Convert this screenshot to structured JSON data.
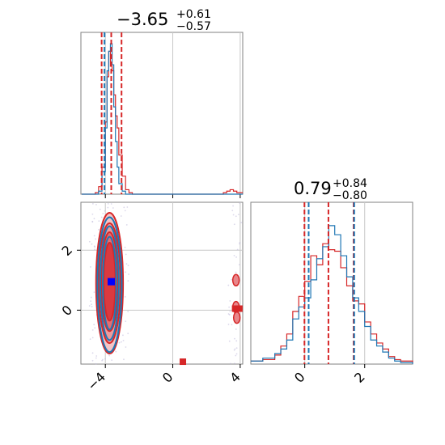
{
  "chart_data": {
    "type": "corner",
    "colors": {
      "red": "#d62728",
      "blue": "#1f77b4",
      "red_fill": "#e8868a",
      "marker": "#0000ff"
    },
    "parameters": [
      {
        "title_value": "−3.65",
        "title_plus": "+0.61",
        "title_minus": "−0.57",
        "range": [
          -5.45,
          4.15
        ],
        "ticks": [
          -4,
          0,
          4
        ],
        "tick_labels": [
          "−4",
          "0",
          "4"
        ],
        "quantiles_red": [
          -4.22,
          -3.65,
          -3.04
        ],
        "quantiles_blue": [
          -4.05
        ]
      },
      {
        "title_value": "0.79",
        "title_plus": "+0.84",
        "title_minus": "−0.80",
        "range": [
          -1.8,
          3.6
        ],
        "ticks": [
          0,
          2
        ],
        "tick_labels": [
          "0",
          "2"
        ],
        "quantiles_red": [
          -0.01,
          0.79,
          1.63
        ],
        "quantiles_blue": [
          0.13,
          1.65
        ]
      }
    ],
    "hist_param1": {
      "x": [
        -5.4,
        -5.0,
        -4.6,
        -4.4,
        -4.2,
        -4.0,
        -3.9,
        -3.8,
        -3.7,
        -3.6,
        -3.5,
        -3.4,
        -3.3,
        -3.2,
        -3.0,
        -2.8,
        -2.6,
        -2.4,
        -2.0,
        -0.4,
        0.8,
        1.8,
        2.6,
        3.0,
        3.2,
        3.4,
        3.6,
        3.8,
        4.0
      ],
      "red": [
        0,
        0,
        0.01,
        0.05,
        0.18,
        0.48,
        0.78,
        0.95,
        0.85,
        0.82,
        0.66,
        0.52,
        0.44,
        0.26,
        0.12,
        0.03,
        0.01,
        0,
        0,
        0,
        0,
        0,
        0,
        0.01,
        0.02,
        0.03,
        0.02,
        0.01,
        0.01
      ],
      "blue": [
        0,
        0,
        0,
        0.02,
        0.15,
        0.44,
        0.82,
        0.95,
        1.0,
        0.86,
        0.58,
        0.35,
        0.18,
        0.07,
        0.02,
        0,
        0,
        0,
        0,
        0,
        0,
        0,
        0,
        0,
        0,
        0,
        0,
        0,
        0
      ]
    },
    "hist_param2": {
      "x": [
        -1.8,
        -1.4,
        -1.0,
        -0.8,
        -0.6,
        -0.4,
        -0.2,
        0.0,
        0.2,
        0.4,
        0.6,
        0.8,
        1.0,
        1.2,
        1.4,
        1.6,
        1.8,
        2.0,
        2.2,
        2.4,
        2.6,
        2.8,
        3.0,
        3.2,
        3.6
      ],
      "red": [
        0.02,
        0.03,
        0.06,
        0.12,
        0.2,
        0.35,
        0.45,
        0.55,
        0.72,
        0.66,
        0.8,
        0.76,
        0.75,
        0.64,
        0.52,
        0.42,
        0.4,
        0.28,
        0.2,
        0.14,
        0.1,
        0.05,
        0.03,
        0.02,
        0.01
      ],
      "blue": [
        0.02,
        0.04,
        0.07,
        0.1,
        0.16,
        0.3,
        0.38,
        0.44,
        0.56,
        0.7,
        0.78,
        0.92,
        0.86,
        0.72,
        0.58,
        0.44,
        0.35,
        0.25,
        0.16,
        0.12,
        0.08,
        0.04,
        0.02,
        0.01,
        0
      ]
    },
    "joint": {
      "contours_red": [
        {
          "cx": -3.75,
          "cy": 0.9,
          "rx": 0.8,
          "ry": 2.35
        },
        {
          "cx": -3.75,
          "cy": 0.9,
          "rx": 0.65,
          "ry": 2.0
        },
        {
          "cx": -3.75,
          "cy": 0.95,
          "rx": 0.5,
          "ry": 1.65
        },
        {
          "cx": -3.75,
          "cy": 0.95,
          "rx": 0.35,
          "ry": 1.3
        }
      ],
      "contours_blue": [
        {
          "cx": -3.75,
          "cy": 0.85,
          "rx": 0.72,
          "ry": 2.25
        },
        {
          "cx": -3.75,
          "cy": 0.9,
          "rx": 0.55,
          "ry": 1.9
        },
        {
          "cx": -3.75,
          "cy": 0.9,
          "rx": 0.4,
          "ry": 1.55
        }
      ],
      "outlier_blobs": [
        {
          "x": 3.75,
          "y": 1.0
        },
        {
          "x": 3.75,
          "y": 0.1
        },
        {
          "x": 3.8,
          "y": -0.25
        }
      ],
      "outlier_squares": [
        {
          "x": 0.6,
          "y": -1.72
        },
        {
          "x": 3.7,
          "y": 0.05
        },
        {
          "x": 3.95,
          "y": 0.05
        }
      ],
      "truth_marker": {
        "x": -3.65,
        "y": 0.95
      },
      "y_range": [
        -1.8,
        3.6
      ]
    }
  }
}
